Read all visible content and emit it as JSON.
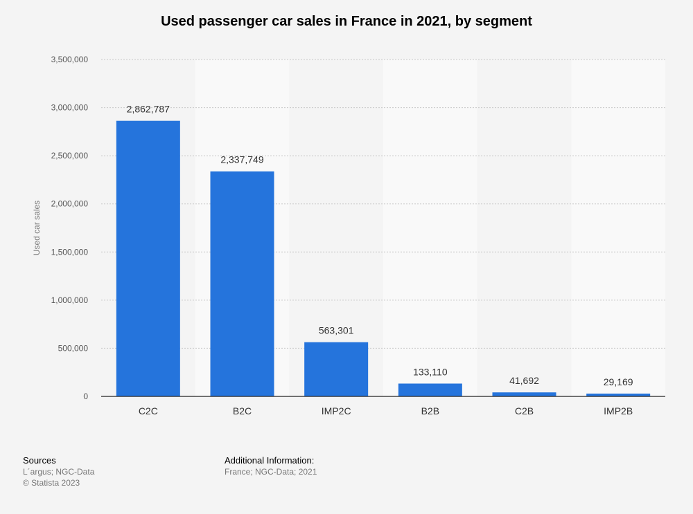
{
  "chart_data": {
    "type": "bar",
    "title": "Used passenger car sales in France in 2021, by segment",
    "categories": [
      "C2C",
      "B2C",
      "IMP2C",
      "B2B",
      "C2B",
      "IMP2B"
    ],
    "values": [
      2862787,
      2337749,
      563301,
      133110,
      41692,
      29169
    ],
    "value_labels": [
      "2,862,787",
      "2,337,749",
      "563,301",
      "133,110",
      "41,692",
      "29,169"
    ],
    "xlabel": "",
    "ylabel": "Used car sales",
    "ylim": [
      0,
      3500000
    ],
    "yticks": [
      0,
      500000,
      1000000,
      1500000,
      2000000,
      2500000,
      3000000,
      3500000
    ],
    "ytick_labels": [
      "0",
      "500,000",
      "1,000,000",
      "1,500,000",
      "2,000,000",
      "2,500,000",
      "3,000,000",
      "3,500,000"
    ],
    "grid": true,
    "bar_color": "#2574dc"
  },
  "footer": {
    "sources_title": "Sources",
    "sources_line1": "L´argus; NGC-Data",
    "sources_line2": "© Statista 2023",
    "additional_title": "Additional Information:",
    "additional_text": "France; NGC-Data; 2021"
  }
}
